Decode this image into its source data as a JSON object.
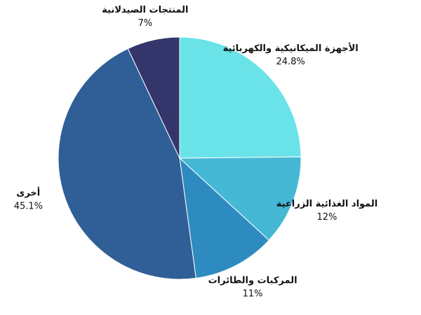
{
  "chart_data": {
    "type": "pie",
    "categories": [
      "الأجهزة الميكانيكية والكهربائية",
      "المواد الغذائية الزراعية",
      "المركبات والطائرات",
      "أخرى",
      "المنتجات الصيدلانية"
    ],
    "values": [
      24.8,
      12,
      11,
      45.1,
      7
    ],
    "value_labels": [
      "24.8%",
      "12%",
      "11%",
      "45.1%",
      "7%"
    ],
    "colors": [
      "#6ae3e8",
      "#45b8d6",
      "#2e8bbf",
      "#2f5f96",
      "#33356b"
    ]
  }
}
